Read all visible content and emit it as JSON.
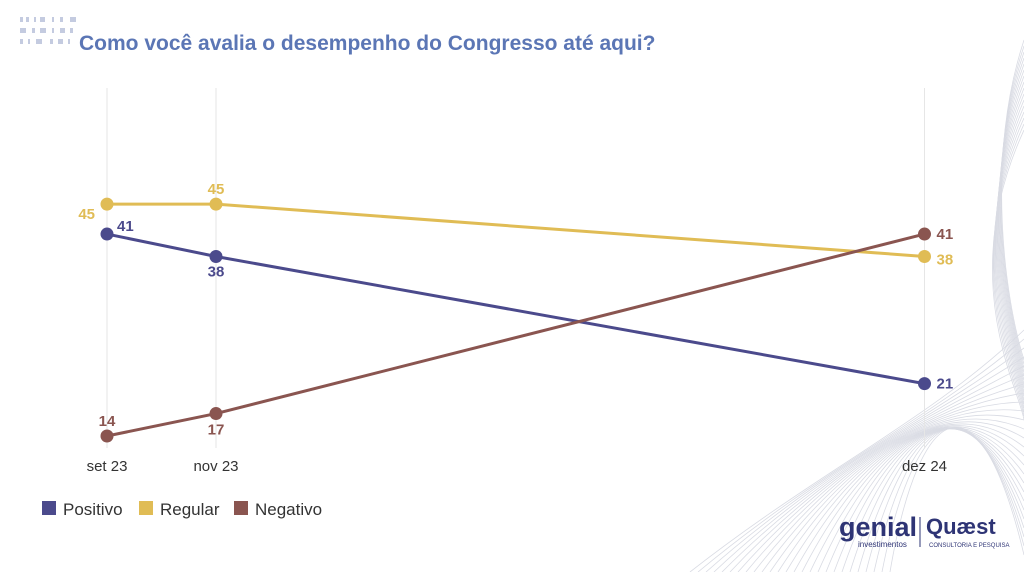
{
  "title": "Como você avalia o desempenho do Congresso até aqui?",
  "colors": {
    "title": "#5b76b5",
    "positivo": "#4b4a8c",
    "regular": "#e0bc55",
    "negativo": "#8a5550",
    "gridline": "#e6e6e6",
    "brand": "#2e3475"
  },
  "chart_data": {
    "type": "line",
    "title": "Como você avalia o desempenho do Congresso até aqui?",
    "x": [
      "set 23",
      "nov 23",
      "dez 24"
    ],
    "x_positions": [
      0,
      1,
      7.5
    ],
    "series": [
      {
        "name": "Positivo",
        "values": [
          41,
          38,
          21
        ],
        "color": "#4b4a8c"
      },
      {
        "name": "Regular",
        "values": [
          45,
          45,
          38
        ],
        "color": "#e0bc55"
      },
      {
        "name": "Negativo",
        "values": [
          14,
          17,
          41
        ],
        "color": "#8a5550"
      }
    ],
    "ylim": [
      10,
      50
    ],
    "grid": "vertical lines at each category",
    "legend_position": "bottom-left",
    "xlabel": "",
    "ylabel": ""
  },
  "legend": [
    "Positivo",
    "Regular",
    "Negativo"
  ],
  "branding": {
    "logo1": "genial",
    "logo1_sub": "investimentos",
    "logo2": "Quæst",
    "logo2_sub": "CONSULTORIA E PESQUISA"
  }
}
